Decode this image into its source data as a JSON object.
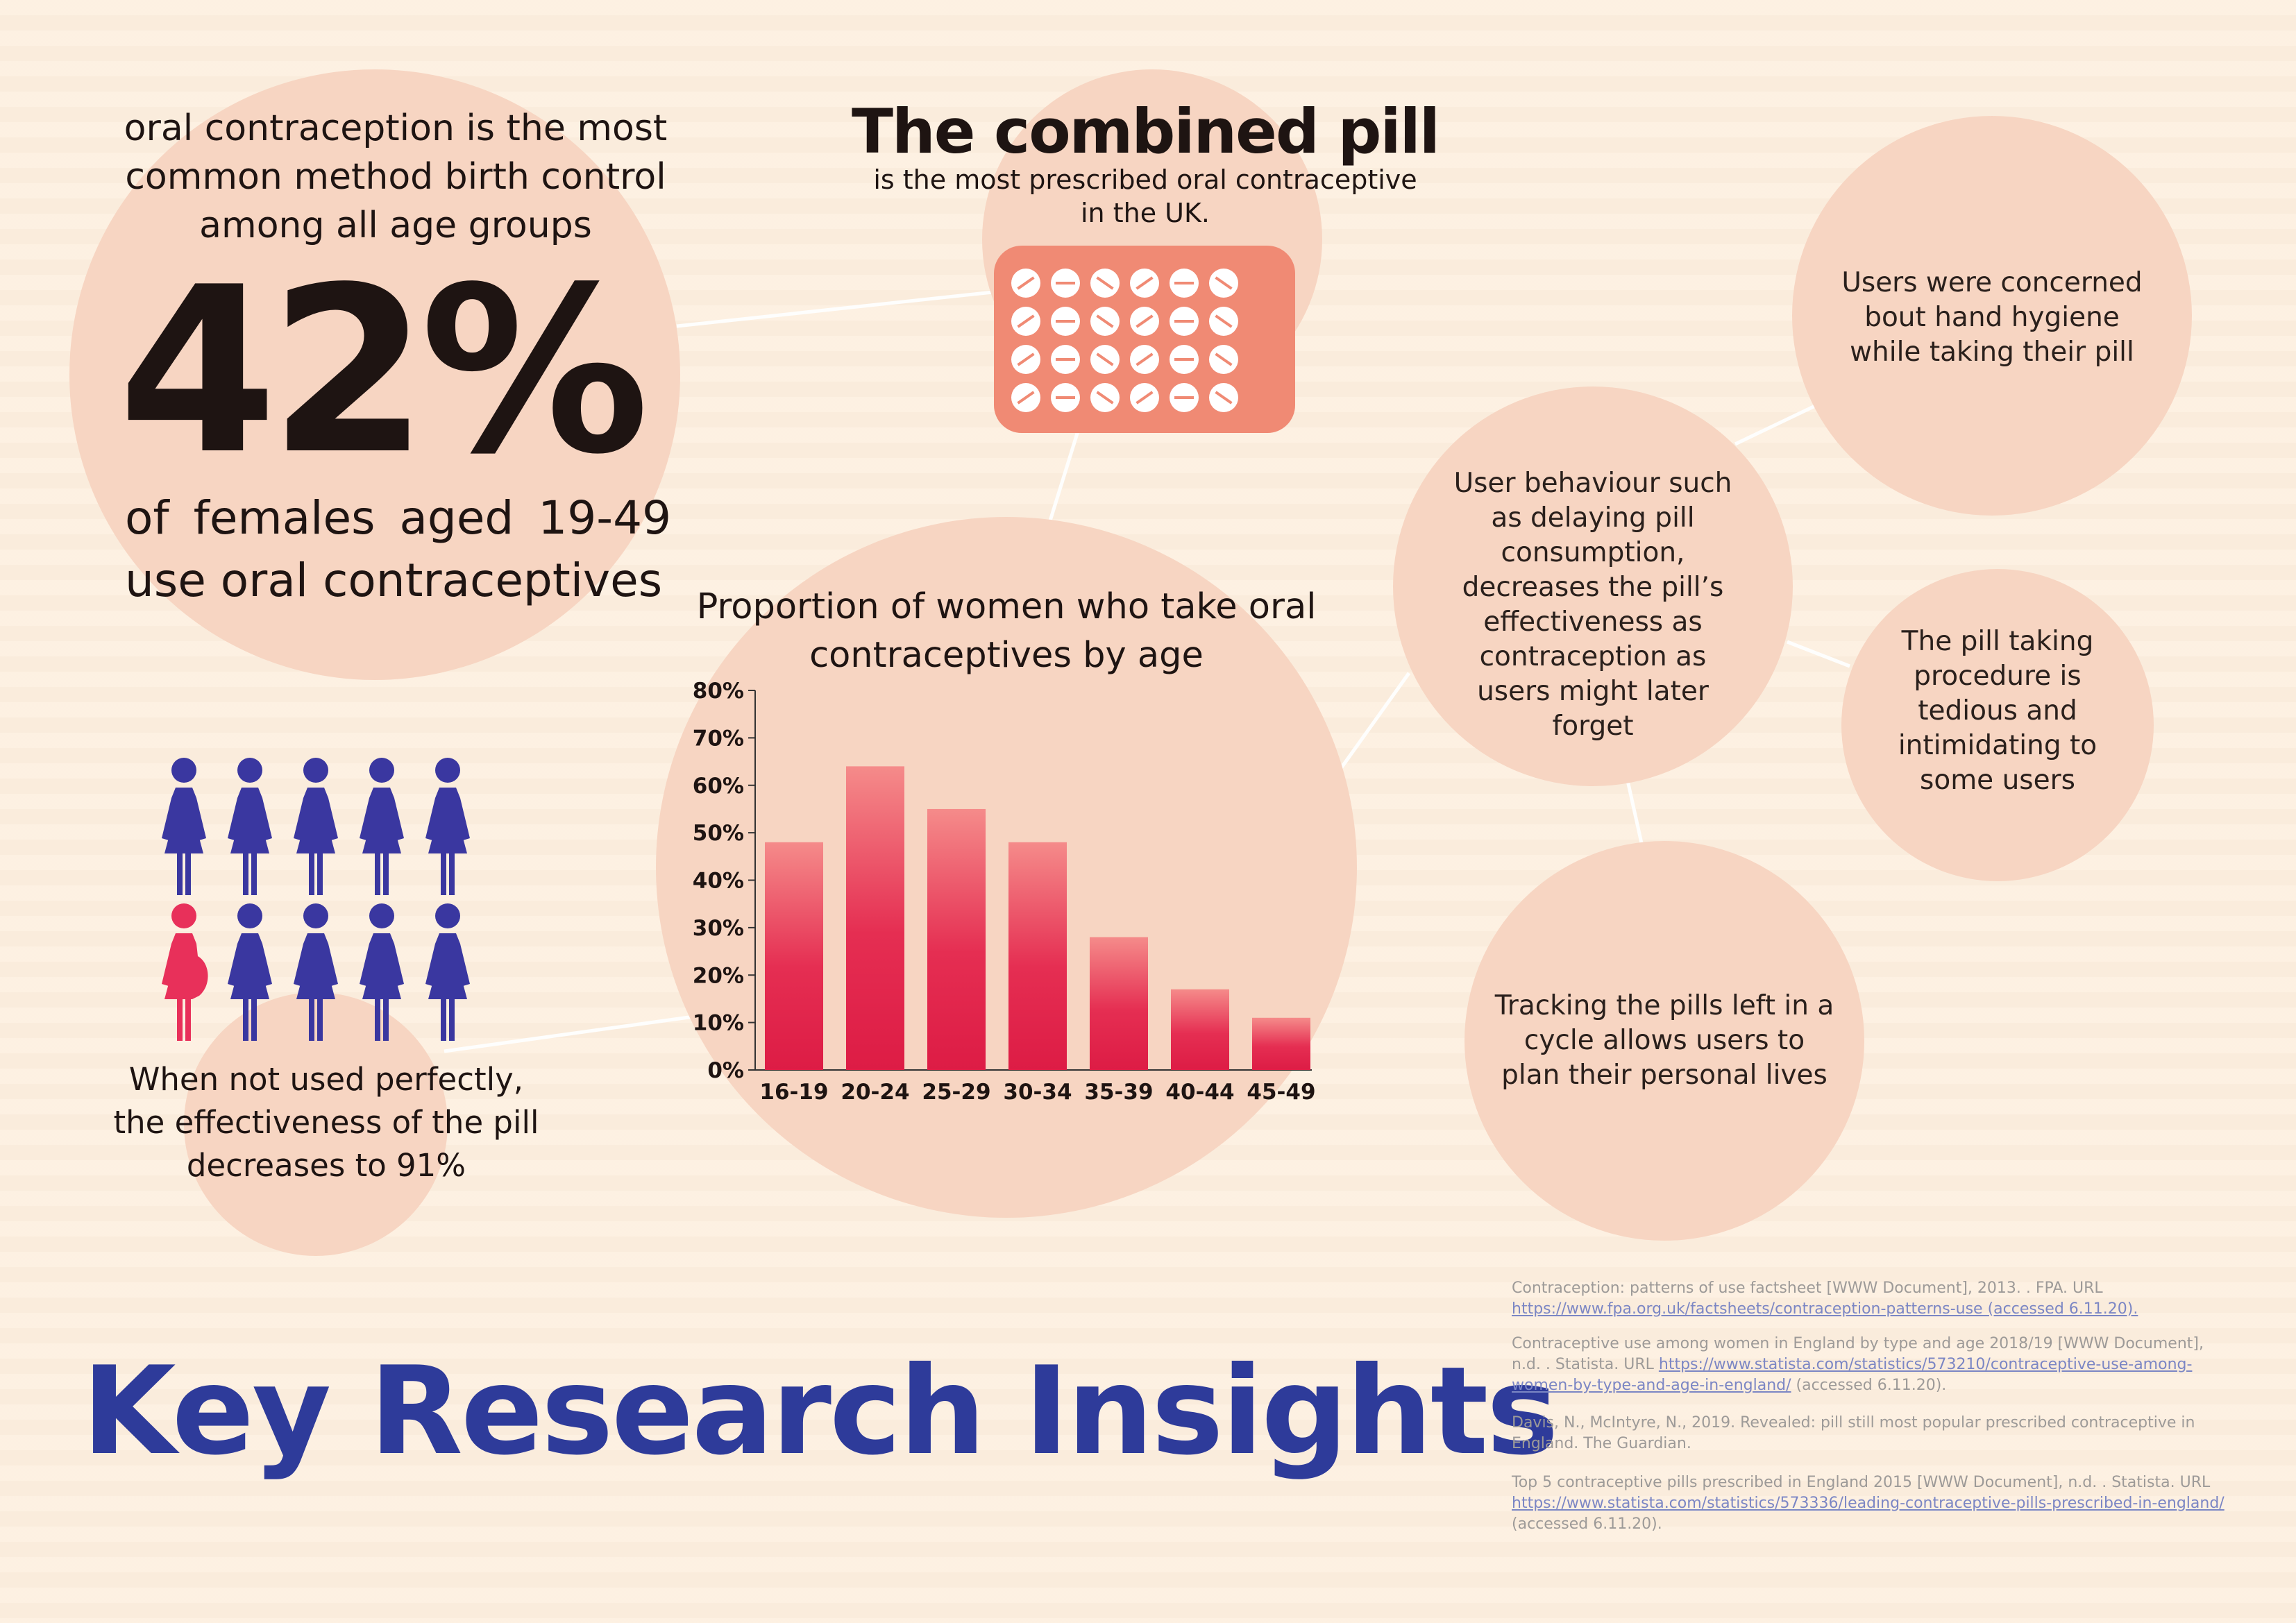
{
  "headline": {
    "intro": "oral contraception is the most common method birth control among all age groups",
    "percent": "42%",
    "line1": "of females aged 19-49",
    "line2": "use oral contraceptives"
  },
  "pill": {
    "title": "The combined pill",
    "subtitle_1": "is the most prescribed oral contraceptive",
    "subtitle_2": "in the UK."
  },
  "chart_data": {
    "type": "bar",
    "title": "Proportion of women who take oral contraceptives by age",
    "categories": [
      "16-19",
      "20-24",
      "25-29",
      "30-34",
      "35-39",
      "40-44",
      "45-49"
    ],
    "values": [
      48,
      64,
      55,
      48,
      28,
      17,
      11
    ],
    "ylim": [
      0,
      80
    ],
    "ytick_labels": [
      "0%",
      "10%",
      "20%",
      "30%",
      "40%",
      "50%",
      "60%",
      "70%",
      "80%"
    ],
    "xlabel": "",
    "ylabel": ""
  },
  "effectiveness": {
    "text": "When not used perfectly, the effectiveness of the pill decreases to 91%",
    "figures_total": 10,
    "figures_highlighted": 1
  },
  "insights": {
    "behaviour": "User behaviour such as delaying pill consumption, decreases the pill’s effectiveness as contraception as users might later forget",
    "hygiene": "Users were concerned bout hand hygiene while taking their pill",
    "procedure": "The pill taking procedure is tedious and intimidating to some users",
    "tracking": "Tracking the pills left in a cycle allows users to plan their personal lives"
  },
  "title": "Key Research Insights",
  "references": [
    {
      "text": "Contraception: patterns of use factsheet [WWW Document], 2013. . FPA. URL ",
      "link": "https://www.fpa.org.uk/factsheets/contraception-patterns-use (accessed 6.11.20)."
    },
    {
      "text": "Contraceptive use among women in England by type and age 2018/19 [WWW Document], n.d. . Statista. URL ",
      "link": "https://www.statista.com/statistics/573210/contraceptive-use-among-women-by-type-and-age-in-england/",
      "suffix": " (accessed 6.11.20)."
    },
    {
      "text": "Davis, N., McIntyre, N., 2019. Revealed: pill still most popular prescribed contraceptive in England. The Guardian."
    },
    {
      "text": "Top 5 contraceptive pills prescribed in England 2015 [WWW Document], n.d. . Statista. URL ",
      "link": "https://www.statista.com/statistics/573336/leading-contraceptive-pills-prescribed-in-england/",
      "suffix": " (accessed 6.11.20)."
    }
  ],
  "colors": {
    "background": "#fdefdf",
    "circle": "#f7d5c2",
    "pill_pack": "#f08a74",
    "bar_top": "#f58b8a",
    "bar_bottom": "#dd1c45",
    "figure_blue": "#3a37a0",
    "figure_pink": "#e8305a",
    "title_blue": "#2e3b9a"
  }
}
